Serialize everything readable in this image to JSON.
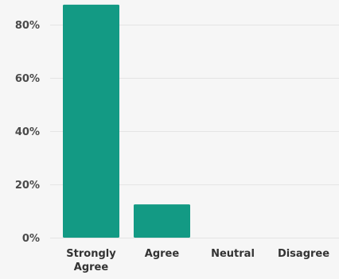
{
  "chart_data": {
    "type": "bar",
    "categories": [
      "Strongly Agree",
      "Agree",
      "Neutral",
      "Disagree"
    ],
    "category_label_lines": [
      [
        "Strongly",
        "Agree"
      ],
      [
        "Agree"
      ],
      [
        "Neutral"
      ],
      [
        "Disagree"
      ]
    ],
    "values": [
      87.5,
      12.5,
      0,
      0
    ],
    "title": "",
    "xlabel": "",
    "ylabel": "",
    "ylim": [
      0,
      90
    ],
    "yticks": [
      0,
      20,
      40,
      60,
      80
    ],
    "ytick_labels": [
      "0%",
      "20%",
      "40%",
      "60%",
      "80%"
    ],
    "grid": true,
    "legend": "none",
    "bar_color": "#139a84",
    "background_color": "#f6f6f6",
    "grid_color": "#e4e4e4"
  }
}
